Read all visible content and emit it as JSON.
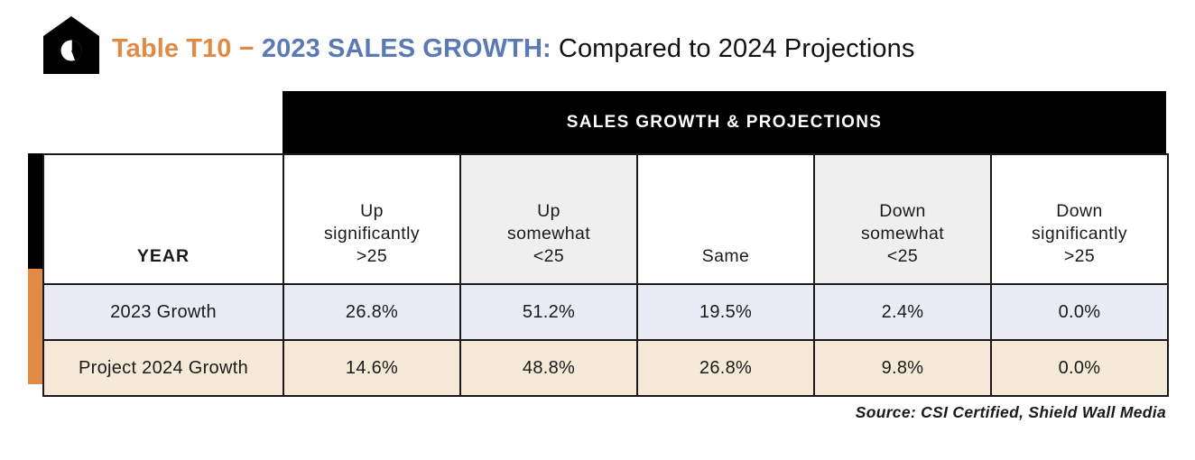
{
  "title": {
    "label": "Table T10",
    "dash": " − ",
    "main": "2023 SALES GROWTH:",
    "subtitle": " Compared to 2024 Projections"
  },
  "banner": "SALES GROWTH & PROJECTIONS",
  "header": {
    "year": "YEAR",
    "columns": [
      {
        "line1": "Up",
        "line2": "significantly",
        "line3": ">25"
      },
      {
        "line1": "Up",
        "line2": "somewhat",
        "line3": "<25"
      },
      {
        "line1": "",
        "line2": "",
        "line3": "Same"
      },
      {
        "line1": "Down",
        "line2": "somewhat",
        "line3": "<25"
      },
      {
        "line1": "Down",
        "line2": "significantly",
        "line3": ">25"
      }
    ]
  },
  "rows": [
    {
      "label": "2023 Growth",
      "values": [
        "26.8%",
        "51.2%",
        "19.5%",
        "2.4%",
        "0.0%"
      ]
    },
    {
      "label": "Project 2024 Growth",
      "values": [
        "14.6%",
        "48.8%",
        "26.8%",
        "9.8%",
        "0.0%"
      ]
    }
  ],
  "source": "Source: CSI Certified, Shield Wall Media",
  "colors": {
    "accent_orange": "#e08a45",
    "accent_blue": "#5b79b4",
    "row_2023": "#e9ecf4",
    "row_2024": "#f6e9d8",
    "header_shade": "#efefef"
  },
  "icon": "house-pie-chart-icon"
}
